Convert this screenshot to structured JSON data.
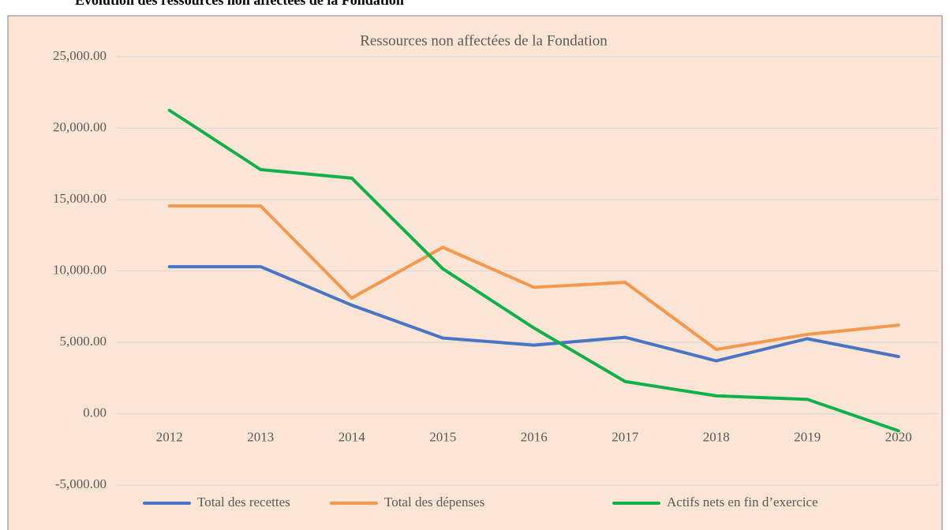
{
  "heading": "Évolution des ressources non affectées de la Fondation",
  "chart_data": {
    "type": "line",
    "title": "Ressources non affectées de la Fondation",
    "categories": [
      "2012",
      "2013",
      "2014",
      "2015",
      "2016",
      "2017",
      "2018",
      "2019",
      "2020"
    ],
    "series": [
      {
        "name": "Total des recettes",
        "color": "#4a74c4",
        "values": [
          10300,
          10300,
          7600,
          5300,
          4800,
          5350,
          3700,
          5250,
          4000
        ]
      },
      {
        "name": "Total des dépenses",
        "color": "#f5984d",
        "values": [
          14550,
          14550,
          8100,
          11650,
          8850,
          9200,
          4500,
          5550,
          6200
        ]
      },
      {
        "name": "Actifs nets en fin d’exercice",
        "color": "#10b04a",
        "values": [
          21250,
          17100,
          16500,
          10150,
          6000,
          2250,
          1250,
          1000,
          -1200
        ]
      }
    ],
    "ylim": [
      -5000,
      25000
    ],
    "yticks": [
      {
        "value": -5000,
        "label": "-5,000.00"
      },
      {
        "value": 0,
        "label": "0.00"
      },
      {
        "value": 5000,
        "label": "5,000.00"
      },
      {
        "value": 10000,
        "label": "10,000.00"
      },
      {
        "value": 15000,
        "label": "15,000.00"
      },
      {
        "value": 20000,
        "label": "20,000.00"
      },
      {
        "value": 25000,
        "label": "25,000.00"
      }
    ],
    "grid": true,
    "legend": "bottom"
  }
}
